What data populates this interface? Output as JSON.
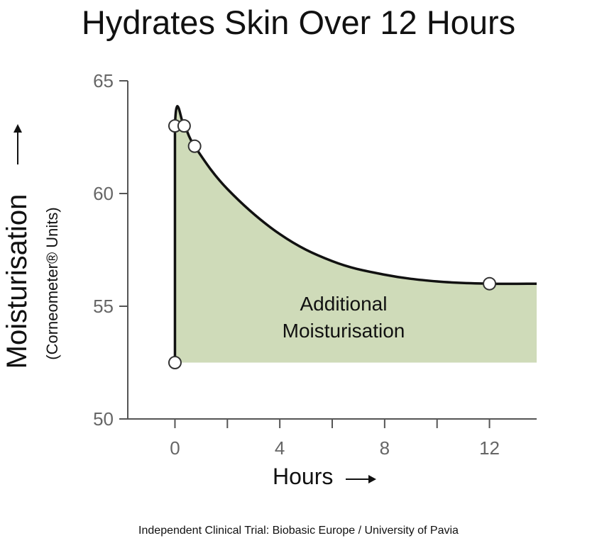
{
  "title": "Hydrates Skin Over 12 Hours",
  "footer": "Independent Clinical Trial: Biobasic Europe / University of Pavia",
  "colors": {
    "fill": "#cfdbb9",
    "line": "#111111",
    "axis": "#555555",
    "tick_text": "#666666",
    "label_text": "#111111"
  },
  "chart_data": {
    "type": "area",
    "title": "Hydrates Skin Over 12 Hours",
    "xlabel": "Hours",
    "ylabel": "Moisturisation",
    "ylabel_sub": "(Corneometer® Units)",
    "xlabel_arrow": "→",
    "ylabel_arrow": "→",
    "xlim": [
      -1.8,
      13.8
    ],
    "ylim": [
      50,
      65
    ],
    "x_ticks_labeled": [
      0,
      4,
      8,
      12
    ],
    "x_ticks_minor": [
      2,
      6,
      10
    ],
    "y_ticks": [
      50,
      55,
      60,
      65
    ],
    "baseline": 52.5,
    "annotation": [
      "Additional",
      "Moisturisation"
    ],
    "markers": [
      {
        "x": 0,
        "y": 52.5
      },
      {
        "x": 0,
        "y": 63
      },
      {
        "x": 0.35,
        "y": 63
      },
      {
        "x": 0.75,
        "y": 62.1
      },
      {
        "x": 12,
        "y": 56
      }
    ],
    "series": [
      {
        "x": [
          0,
          0,
          0.35,
          0.75,
          2,
          4,
          6,
          8,
          10,
          12,
          13.8
        ],
        "y": [
          52.5,
          63,
          63,
          62.1,
          60.2,
          58.2,
          57.0,
          56.4,
          56.1,
          56.0,
          56.0
        ]
      }
    ],
    "grid": false
  }
}
